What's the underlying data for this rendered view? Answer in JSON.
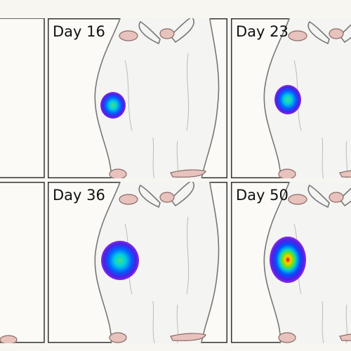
{
  "panels": [
    {
      "label": "Day 16"
    },
    {
      "label": "Day 23"
    },
    {
      "label": "Day 36"
    },
    {
      "label": "Day 50"
    }
  ]
}
